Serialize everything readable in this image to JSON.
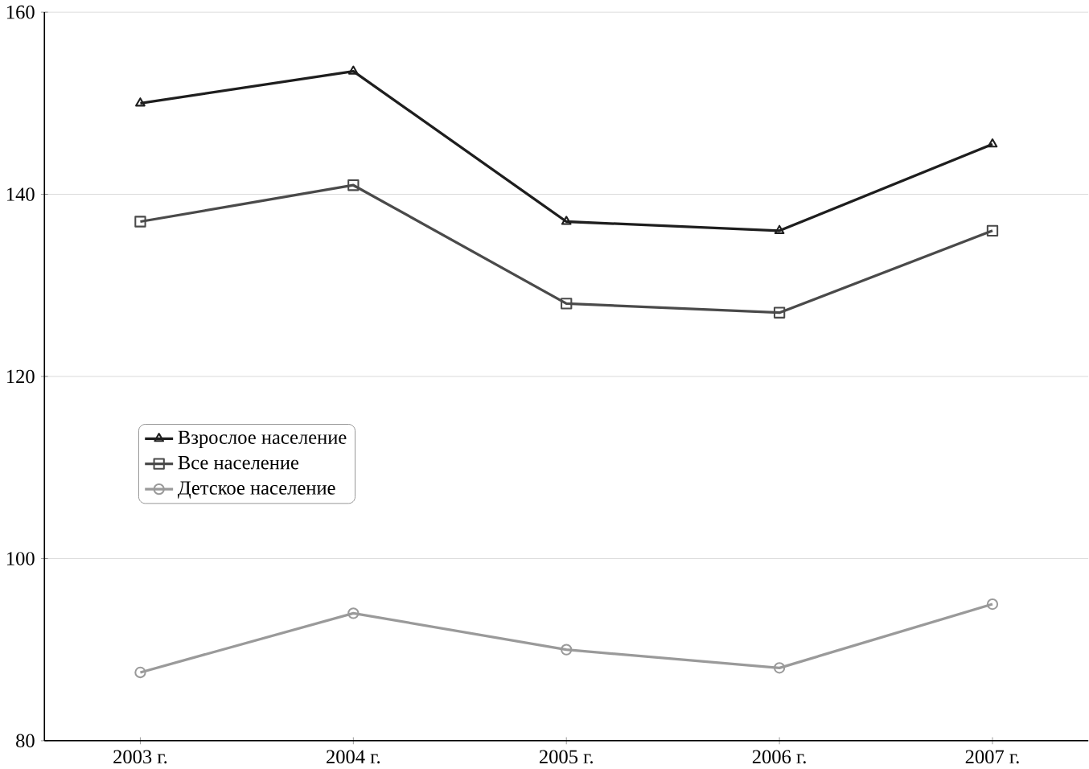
{
  "chart_data": {
    "type": "line",
    "categories": [
      "2003 г.",
      "2004 г.",
      "2005 г.",
      "2006 г.",
      "2007 г."
    ],
    "series": [
      {
        "name": "Взрослое население",
        "color": "#1e1e1e",
        "marker": "triangle",
        "values": [
          150,
          153.5,
          137,
          136,
          145.5
        ]
      },
      {
        "name": "Все население",
        "color": "#4a4a4a",
        "marker": "square",
        "values": [
          137,
          141,
          128,
          127,
          136
        ]
      },
      {
        "name": "Детское население",
        "color": "#9a9a9a",
        "marker": "circle",
        "values": [
          87.5,
          94,
          90,
          88,
          95
        ]
      }
    ],
    "ylim": [
      80,
      160
    ],
    "yticks": [
      80,
      100,
      120,
      140,
      160
    ],
    "grid": "y",
    "legend": "center left",
    "line_style": "solid"
  }
}
